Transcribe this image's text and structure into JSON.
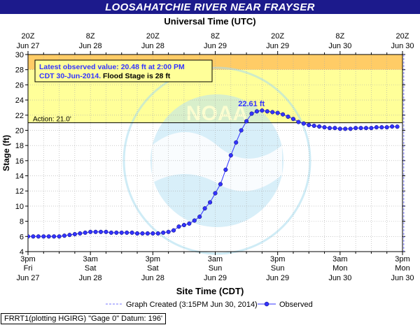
{
  "title": "LOOSAHATCHIE RIVER NEAR FRAYSER",
  "footer_note": "FRRT1(plotting HGIRG) \"Gage 0\" Datum: 196'",
  "colors": {
    "title_bg": "#1c1a8c",
    "flood_zone": "#ffff99",
    "moderate_zone": "#ffcc66",
    "observed_series": "#3333ff",
    "graph_created_line": "#7777ff"
  },
  "chart_data": {
    "type": "line",
    "top_axis_title": "Universal Time (UTC)",
    "xlabel": "Site Time (CDT)",
    "ylabel": "Stage (ft)",
    "ylim": [
      4,
      30
    ],
    "yticks": [
      4,
      6,
      8,
      10,
      12,
      14,
      16,
      18,
      20,
      22,
      24,
      26,
      28,
      30
    ],
    "xlim_hours": [
      0,
      72
    ],
    "x_unit": "hours after 3pm Fri Jun 27 (CDT)",
    "bottom_ticks": [
      {
        "h": 0,
        "l1": "3pm",
        "l2": "Fri",
        "l3": "Jun 27"
      },
      {
        "h": 12,
        "l1": "3am",
        "l2": "Sat",
        "l3": "Jun 28"
      },
      {
        "h": 24,
        "l1": "3pm",
        "l2": "Sat",
        "l3": "Jun 28"
      },
      {
        "h": 36,
        "l1": "3am",
        "l2": "Sun",
        "l3": "Jun 29"
      },
      {
        "h": 48,
        "l1": "3pm",
        "l2": "Sun",
        "l3": "Jun 29"
      },
      {
        "h": 60,
        "l1": "3am",
        "l2": "Mon",
        "l3": "Jun 30"
      },
      {
        "h": 72,
        "l1": "3pm",
        "l2": "Mon",
        "l3": "Jun 30"
      }
    ],
    "top_ticks": [
      {
        "h": 0,
        "l1": "20Z",
        "l2": "Jun 27"
      },
      {
        "h": 12,
        "l1": "8Z",
        "l2": "Jun 28"
      },
      {
        "h": 24,
        "l1": "20Z",
        "l2": "Jun 28"
      },
      {
        "h": 36,
        "l1": "8Z",
        "l2": "Jun 29"
      },
      {
        "h": 48,
        "l1": "20Z",
        "l2": "Jun 29"
      },
      {
        "h": 60,
        "l1": "8Z",
        "l2": "Jun 30"
      },
      {
        "h": 72,
        "l1": "20Z",
        "l2": "Jun 30"
      }
    ],
    "action_stage": 21.0,
    "action_label": "Action: 21.0'",
    "flood_stage": 28,
    "moderate_stage": 30,
    "peak": {
      "h": 43.5,
      "value": 22.61,
      "label": "22.61 ft"
    },
    "graph_created_h": 72.25,
    "info_box": {
      "line1": "Latest observed value: 20.48 ft at 2:00 PM",
      "line2a": "CDT 30-Jun-2014.",
      "line2b": " Flood Stage is 28 ft"
    },
    "legend": {
      "graph_created": "Graph Created (3:15PM Jun 30, 2014)",
      "observed": "Observed"
    },
    "series": [
      {
        "name": "Observed",
        "x": [
          0,
          1,
          2,
          3,
          4,
          5,
          6,
          7,
          8,
          9,
          10,
          11,
          12,
          13,
          14,
          15,
          16,
          17,
          18,
          19,
          20,
          21,
          22,
          23,
          24,
          25,
          26,
          27,
          28,
          29,
          30,
          31,
          32,
          33,
          34,
          35,
          36,
          37,
          38,
          39,
          40,
          41,
          42,
          43,
          44,
          45,
          46,
          47,
          48,
          49,
          50,
          51,
          52,
          53,
          54,
          55,
          56,
          57,
          58,
          59,
          60,
          61,
          62,
          63,
          64,
          65,
          66,
          67,
          68,
          69,
          70,
          71
        ],
        "values": [
          6.0,
          6.0,
          6.0,
          6.0,
          6.0,
          6.0,
          6.0,
          6.1,
          6.2,
          6.3,
          6.4,
          6.5,
          6.6,
          6.6,
          6.6,
          6.6,
          6.5,
          6.5,
          6.5,
          6.5,
          6.5,
          6.4,
          6.4,
          6.4,
          6.4,
          6.4,
          6.5,
          6.6,
          6.8,
          7.3,
          7.5,
          7.7,
          8.1,
          8.6,
          9.7,
          10.5,
          11.7,
          12.9,
          14.8,
          16.7,
          18.4,
          20.0,
          21.2,
          22.2,
          22.5,
          22.61,
          22.5,
          22.4,
          22.3,
          22.1,
          21.8,
          21.5,
          21.1,
          20.9,
          20.7,
          20.6,
          20.5,
          20.4,
          20.3,
          20.3,
          20.2,
          20.2,
          20.2,
          20.3,
          20.3,
          20.3,
          20.3,
          20.4,
          20.4,
          20.4,
          20.5,
          20.48
        ]
      }
    ]
  }
}
